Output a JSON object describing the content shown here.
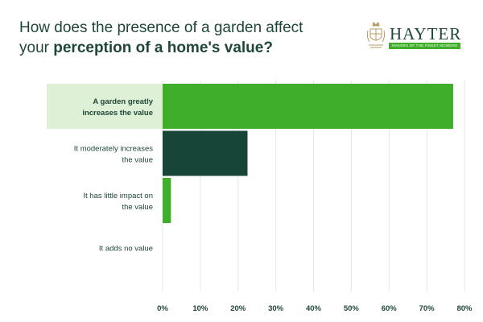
{
  "title": {
    "line1": "How does the presence of a garden affect",
    "line2_prefix": "your ",
    "line2_bold": "perception of a home's value?"
  },
  "logo": {
    "wordmark": "HAYTER",
    "tagline": "MAKERS OF THE FINEST MOWERS",
    "crest_icon": "royal-crest-icon",
    "crest_color": "#b89a63"
  },
  "colors": {
    "bar_primary": "#3fae2a",
    "bar_secondary": "#174537",
    "highlight": "#def0d6",
    "grid": "#e6e6e6",
    "text": "#1f4637"
  },
  "chart_data": {
    "type": "bar",
    "orientation": "horizontal",
    "categories": [
      [
        "A garden greatly",
        "increases the value"
      ],
      [
        "It moderately increases",
        "the value"
      ],
      [
        "It has little impact on",
        "the value"
      ],
      [
        "It adds no value"
      ]
    ],
    "values": [
      77,
      22.5,
      2.2,
      0
    ],
    "bar_colors": [
      "#3fae2a",
      "#174537",
      "#3fae2a",
      "#3fae2a"
    ],
    "highlighted_category": 0,
    "xlim": [
      0,
      80
    ],
    "xticks": [
      "0%",
      "10%",
      "20%",
      "30%",
      "40%",
      "50%",
      "60%",
      "70%",
      "80%"
    ],
    "grid": true,
    "title": "",
    "xlabel": "",
    "ylabel": ""
  }
}
